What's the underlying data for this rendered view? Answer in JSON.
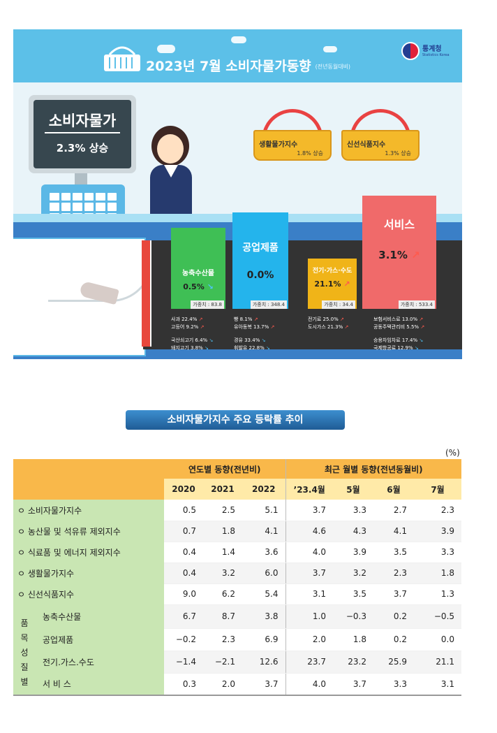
{
  "infographic": {
    "title": "2023년  7월 소비자물가동향",
    "title_sub": "(전년동월대비)",
    "agency": "통계청",
    "agency_en": "Statistics Korea",
    "cpi_label": "소비자물가",
    "cpi_value": "2.3% 상승",
    "baskets": [
      {
        "label": "생활물가지수",
        "value": "1.8% 상승"
      },
      {
        "label": "신선식품지수",
        "value": "1.3% 상승"
      }
    ],
    "categories": {
      "agri": {
        "label": "농축수산물",
        "value": "0.5%",
        "weight": "가중치 : 83.8"
      },
      "industrial": {
        "label": "공업제품",
        "value": "0.0%",
        "weight": "가중치 : 348.4"
      },
      "energy": {
        "label": "전기·가스·수도",
        "value": "21.1%",
        "weight": "가중치 : 34.4"
      },
      "service": {
        "label": "서비스",
        "value": "3.1%",
        "weight": "가중치 : 533.4"
      }
    },
    "items": {
      "agri_up": [
        "사과 22.4%",
        "고등어 9.2%"
      ],
      "agri_down": [
        "국산쇠고기 6.4%",
        "돼지고기 3.8%"
      ],
      "ind_up": [
        "빵 8.1%",
        "유아동복 13.7%"
      ],
      "ind_down": [
        "경유 33.4%",
        "휘발유 22.8%"
      ],
      "ener_up": [
        "전기료 25.0%",
        "도시가스 21.3%"
      ],
      "serv_up": [
        "보험서비스료 13.0%",
        "공동주택관리비 5.5%"
      ],
      "serv_down": [
        "승용차임차료 17.4%",
        "국제항공료 12.9%"
      ]
    },
    "colors": {
      "header": "#5cc0e8",
      "agri": "#3fbf55",
      "industrial": "#24b4ec",
      "energy": "#f0b418",
      "service": "#f06a6a"
    }
  },
  "table": {
    "section_title": "소비자물가지수 주요 등락률 추이",
    "unit": "(%)",
    "group_annual": "연도별 동향(전년비)",
    "group_monthly": "최근 월별 동향(전년동월비)",
    "columns": [
      "2020",
      "2021",
      "2022",
      "’23.4월",
      "5월",
      "6월",
      "7월"
    ],
    "rows": [
      {
        "label": "ㅇ 소비자물가지수",
        "values": [
          "0.5",
          "2.5",
          "5.1",
          "3.7",
          "3.3",
          "2.7",
          "2.3"
        ]
      },
      {
        "label": "ㅇ 농산물 및 석유류 제외지수",
        "values": [
          "0.7",
          "1.8",
          "4.1",
          "4.6",
          "4.3",
          "4.1",
          "3.9"
        ]
      },
      {
        "label": "ㅇ 식료품 및 에너지 제외지수",
        "values": [
          "0.4",
          "1.4",
          "3.6",
          "4.0",
          "3.9",
          "3.5",
          "3.3"
        ]
      },
      {
        "label": "ㅇ 생활물가지수",
        "values": [
          "0.4",
          "3.2",
          "6.0",
          "3.7",
          "3.2",
          "2.3",
          "1.8"
        ]
      },
      {
        "label": "ㅇ 신선식품지수",
        "values": [
          "9.0",
          "6.2",
          "5.4",
          "3.1",
          "3.5",
          "3.7",
          "1.3"
        ]
      }
    ],
    "group_label": "품 목 성 질 별",
    "sub_rows": [
      {
        "label": "농축수산물",
        "values": [
          "6.7",
          "8.7",
          "3.8",
          "1.0",
          "−0.3",
          "0.2",
          "−0.5"
        ]
      },
      {
        "label": "공업제품",
        "values": [
          "−0.2",
          "2.3",
          "6.9",
          "2.0",
          "1.8",
          "0.2",
          "0.0"
        ]
      },
      {
        "label": "전기.가스.수도",
        "values": [
          "−1.4",
          "−2.1",
          "12.6",
          "23.7",
          "23.2",
          "25.9",
          "21.1"
        ]
      },
      {
        "label": "서 비 스",
        "values": [
          "0.3",
          "2.0",
          "3.7",
          "4.0",
          "3.7",
          "3.3",
          "3.1"
        ]
      }
    ]
  }
}
